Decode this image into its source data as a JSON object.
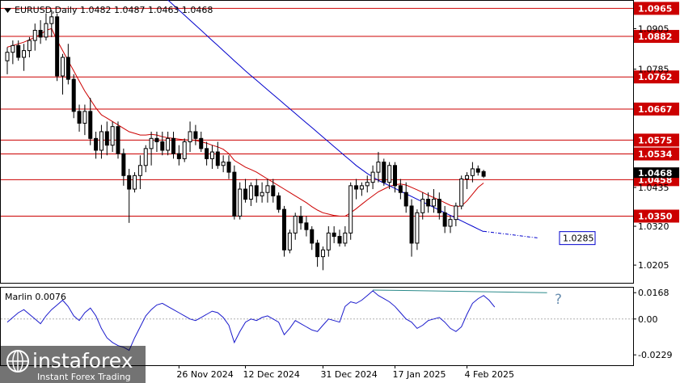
{
  "header": {
    "symbol_line": "EURUSD,Daily  1.0482 1.0487 1.0463 1.0468"
  },
  "indicator": {
    "label": "Marlin 0.0076",
    "question_mark": "?"
  },
  "watermark": {
    "brand": "instaforex",
    "tagline": "Instant Forex Trading"
  },
  "colors": {
    "level_line": "#cc0000",
    "level_label_bg": "#cc0000",
    "ma_fast": "#cc0000",
    "ma_slow": "#0000cc",
    "marlin_line": "#1a1acc",
    "divergence_line": "#2a8a8a",
    "candle_bull": "#ffffff",
    "candle_bear": "#000000",
    "projection_label_border": "#0000cc"
  },
  "chart_data": [
    {
      "type": "candlestick",
      "title": "EURUSD,Daily",
      "ohlc_header": {
        "open": 1.0482,
        "high": 1.0487,
        "low": 1.0463,
        "close": 1.0468
      },
      "ylim": [
        1.0155,
        1.0985
      ],
      "y_ticks": [
        1.0905,
        1.0785,
        1.0435,
        1.032,
        1.0205
      ],
      "y_tick_labels": [
        "1.0905",
        "1.0785",
        "1.0435",
        "1.0320",
        "1.0205"
      ],
      "x_tick_labels": [
        "26 Nov 2024",
        "12 Dec 2024",
        "31 Dec 2024",
        "17 Jan 2025",
        "4 Feb 2025"
      ],
      "x_tick_index": [
        31,
        43,
        57,
        70,
        83
      ],
      "levels": [
        {
          "value": 1.0965,
          "label": "1.0965"
        },
        {
          "value": 1.0882,
          "label": "1.0882"
        },
        {
          "value": 1.0762,
          "label": "1.0762"
        },
        {
          "value": 1.0667,
          "label": "1.0667"
        },
        {
          "value": 1.0575,
          "label": "1.0575"
        },
        {
          "value": 1.0534,
          "label": "1.0534"
        },
        {
          "value": 1.0458,
          "label": "1.0458"
        },
        {
          "value": 1.035,
          "label": "1.0350"
        }
      ],
      "current_price_label": "1.0468",
      "projection": {
        "value": 1.0285,
        "label": "1.0285"
      },
      "candles": [
        [
          1.081,
          1.085,
          1.077,
          1.0835
        ],
        [
          1.0835,
          1.087,
          1.08,
          1.0855
        ],
        [
          1.0855,
          1.087,
          1.081,
          1.082
        ],
        [
          1.082,
          1.086,
          1.078,
          1.084
        ],
        [
          1.084,
          1.088,
          1.082,
          1.087
        ],
        [
          1.087,
          1.092,
          1.084,
          1.09
        ],
        [
          1.09,
          1.093,
          1.086,
          1.088
        ],
        [
          1.088,
          1.095,
          1.087,
          1.092
        ],
        [
          1.092,
          1.096,
          1.088,
          1.094
        ],
        [
          1.094,
          1.095,
          1.075,
          1.0765
        ],
        [
          1.0765,
          1.083,
          1.071,
          1.082
        ],
        [
          1.082,
          1.086,
          1.074,
          1.0755
        ],
        [
          1.0755,
          1.077,
          1.064,
          1.066
        ],
        [
          1.066,
          1.068,
          1.06,
          1.0625
        ],
        [
          1.0625,
          1.068,
          1.059,
          1.066
        ],
        [
          1.066,
          1.07,
          1.056,
          1.058
        ],
        [
          1.058,
          1.06,
          1.052,
          1.0545
        ],
        [
          1.0545,
          1.062,
          1.052,
          1.06
        ],
        [
          1.06,
          1.063,
          1.053,
          1.056
        ],
        [
          1.056,
          1.063,
          1.054,
          1.0615
        ],
        [
          1.0615,
          1.063,
          1.052,
          1.0535
        ],
        [
          1.0535,
          1.055,
          1.044,
          1.047
        ],
        [
          1.047,
          1.049,
          1.033,
          1.043
        ],
        [
          1.043,
          1.048,
          1.042,
          1.047
        ],
        [
          1.047,
          1.053,
          1.043,
          1.05
        ],
        [
          1.05,
          1.056,
          1.048,
          1.055
        ],
        [
          1.055,
          1.06,
          1.05,
          1.058
        ],
        [
          1.058,
          1.06,
          1.054,
          1.057
        ],
        [
          1.057,
          1.06,
          1.053,
          1.0545
        ],
        [
          1.0545,
          1.06,
          1.053,
          1.058
        ],
        [
          1.058,
          1.06,
          1.052,
          1.0535
        ],
        [
          1.0535,
          1.056,
          1.05,
          1.052
        ],
        [
          1.052,
          1.058,
          1.051,
          1.057
        ],
        [
          1.057,
          1.063,
          1.054,
          1.06
        ],
        [
          1.06,
          1.062,
          1.056,
          1.058
        ],
        [
          1.058,
          1.06,
          1.054,
          1.055
        ],
        [
          1.055,
          1.057,
          1.05,
          1.052
        ],
        [
          1.052,
          1.056,
          1.049,
          1.054
        ],
        [
          1.054,
          1.057,
          1.049,
          1.05
        ],
        [
          1.05,
          1.053,
          1.048,
          1.051
        ],
        [
          1.051,
          1.053,
          1.046,
          1.048
        ],
        [
          1.048,
          1.05,
          1.034,
          1.035
        ],
        [
          1.035,
          1.045,
          1.034,
          1.043
        ],
        [
          1.043,
          1.046,
          1.039,
          1.04
        ],
        [
          1.04,
          1.045,
          1.038,
          1.044
        ],
        [
          1.044,
          1.046,
          1.039,
          1.041
        ],
        [
          1.041,
          1.045,
          1.039,
          1.042
        ],
        [
          1.042,
          1.046,
          1.039,
          1.044
        ],
        [
          1.044,
          1.046,
          1.039,
          1.041
        ],
        [
          1.041,
          1.042,
          1.036,
          1.037
        ],
        [
          1.037,
          1.038,
          1.023,
          1.025
        ],
        [
          1.025,
          1.031,
          1.024,
          1.03
        ],
        [
          1.03,
          1.036,
          1.028,
          1.035
        ],
        [
          1.035,
          1.038,
          1.031,
          1.033
        ],
        [
          1.033,
          1.035,
          1.029,
          1.031
        ],
        [
          1.031,
          1.032,
          1.025,
          1.027
        ],
        [
          1.027,
          1.028,
          1.02,
          1.023
        ],
        [
          1.023,
          1.026,
          1.019,
          1.025
        ],
        [
          1.025,
          1.032,
          1.023,
          1.03
        ],
        [
          1.03,
          1.032,
          1.027,
          1.029
        ],
        [
          1.029,
          1.031,
          1.026,
          1.027
        ],
        [
          1.027,
          1.032,
          1.026,
          1.03
        ],
        [
          1.03,
          1.045,
          1.028,
          1.044
        ],
        [
          1.044,
          1.046,
          1.04,
          1.043
        ],
        [
          1.043,
          1.045,
          1.041,
          1.044
        ],
        [
          1.044,
          1.047,
          1.042,
          1.045
        ],
        [
          1.045,
          1.05,
          1.043,
          1.048
        ],
        [
          1.048,
          1.054,
          1.045,
          1.051
        ],
        [
          1.051,
          1.052,
          1.044,
          1.045
        ],
        [
          1.045,
          1.051,
          1.043,
          1.05
        ],
        [
          1.05,
          1.051,
          1.042,
          1.044
        ],
        [
          1.044,
          1.046,
          1.04,
          1.042
        ],
        [
          1.042,
          1.045,
          1.036,
          1.038
        ],
        [
          1.038,
          1.04,
          1.023,
          1.027
        ],
        [
          1.027,
          1.037,
          1.025,
          1.036
        ],
        [
          1.036,
          1.042,
          1.034,
          1.04
        ],
        [
          1.04,
          1.042,
          1.036,
          1.038
        ],
        [
          1.038,
          1.043,
          1.036,
          1.04
        ],
        [
          1.04,
          1.042,
          1.034,
          1.036
        ],
        [
          1.036,
          1.038,
          1.03,
          1.032
        ],
        [
          1.032,
          1.035,
          1.03,
          1.034
        ],
        [
          1.034,
          1.039,
          1.032,
          1.038
        ],
        [
          1.038,
          1.047,
          1.037,
          1.046
        ],
        [
          1.046,
          1.048,
          1.043,
          1.047
        ],
        [
          1.047,
          1.051,
          1.045,
          1.049
        ],
        [
          1.049,
          1.05,
          1.047,
          1.048
        ],
        [
          1.0482,
          1.0487,
          1.0463,
          1.0468
        ]
      ],
      "ma_fast": [
        1.085,
        1.0855,
        1.086,
        1.0865,
        1.0872,
        1.088,
        1.0888,
        1.09,
        1.0905,
        1.087,
        1.084,
        1.081,
        1.078,
        1.075,
        1.072,
        1.0695,
        1.067,
        1.065,
        1.064,
        1.063,
        1.062,
        1.061,
        1.06,
        1.0595,
        1.059,
        1.059,
        1.0592,
        1.059,
        1.0585,
        1.0582,
        1.058,
        1.0578,
        1.0576,
        1.0575,
        1.0574,
        1.057,
        1.0566,
        1.056,
        1.0555,
        1.0548,
        1.0535,
        1.0515,
        1.0505,
        1.0495,
        1.0488,
        1.048,
        1.047,
        1.046,
        1.045,
        1.044,
        1.043,
        1.042,
        1.041,
        1.04,
        1.039,
        1.0378,
        1.0368,
        1.036,
        1.0356,
        1.0352,
        1.035,
        1.035,
        1.036,
        1.0372,
        1.0385,
        1.0398,
        1.041,
        1.0422,
        1.043,
        1.0438,
        1.0443,
        1.0445,
        1.0442,
        1.0435,
        1.0428,
        1.042,
        1.0412,
        1.0405,
        1.0398,
        1.039,
        1.0382,
        1.0378,
        1.038,
        1.0395,
        1.0415,
        1.0435,
        1.0448
      ],
      "ma_slow": [
        1.108,
        1.1065,
        1.105,
        1.1035,
        1.102,
        1.1005,
        1.099,
        1.0975,
        1.096,
        1.0945,
        1.093,
        1.0915,
        1.09,
        1.0885,
        1.087,
        1.0855,
        1.084,
        1.0825,
        1.081,
        1.0795,
        1.078,
        1.0766,
        1.0752,
        1.0738,
        1.0724,
        1.071,
        1.0696,
        1.0682,
        1.0668,
        1.0654,
        1.064,
        1.0626,
        1.0612,
        1.0598,
        1.0584,
        1.057,
        1.0556,
        1.0542,
        1.0528,
        1.0514,
        1.05,
        1.0488,
        1.0476,
        1.0466,
        1.0456,
        1.0448,
        1.044,
        1.0432,
        1.0424,
        1.0416,
        1.0408,
        1.04,
        1.0392,
        1.0384,
        1.0376,
        1.0368,
        1.036,
        1.0352,
        1.0344,
        1.0336,
        1.0328,
        1.032,
        1.0312,
        1.0304
      ],
      "ma_slow_start_index": 23,
      "projection_line": {
        "from_index": 86,
        "from_value": 1.0305,
        "to_index": 96,
        "to_value": 1.0285
      }
    },
    {
      "type": "line",
      "title": "Marlin",
      "value_label": "0.0076",
      "ylim": [
        -0.029,
        0.0195
      ],
      "y_ticks": [
        0.0168,
        0.0,
        -0.0229
      ],
      "y_tick_labels": [
        "0.0168",
        "0.00",
        "-0.0229"
      ],
      "series": [
        {
          "values": [
            -0.002,
            0.001,
            0.004,
            0.006,
            0.003,
            0.0,
            -0.003,
            0.002,
            0.006,
            0.009,
            0.012,
            0.008,
            0.002,
            -0.001,
            0.004,
            0.007,
            0.002,
            -0.006,
            -0.012,
            -0.015,
            -0.017,
            -0.018,
            -0.02,
            -0.012,
            -0.005,
            0.002,
            0.006,
            0.009,
            0.01,
            0.008,
            0.006,
            0.004,
            0.002,
            0.0,
            -0.001,
            0.001,
            0.003,
            0.005,
            0.004,
            0.001,
            -0.004,
            -0.015,
            -0.008,
            -0.002,
            0.0,
            -0.001,
            0.001,
            0.002,
            0.0,
            -0.002,
            -0.01,
            -0.006,
            -0.001,
            -0.003,
            -0.005,
            -0.007,
            -0.008,
            -0.004,
            0.0,
            -0.001,
            -0.002,
            0.008,
            0.011,
            0.01,
            0.012,
            0.015,
            0.018,
            0.015,
            0.013,
            0.011,
            0.008,
            0.004,
            0.0,
            -0.002,
            -0.006,
            -0.004,
            -0.001,
            0.0,
            0.001,
            -0.002,
            -0.006,
            -0.008,
            -0.005,
            0.003,
            0.01,
            0.013,
            0.015,
            0.012,
            0.0076
          ]
        }
      ],
      "divergence": {
        "from_index": 66,
        "from_value": 0.0185,
        "to_index": 96,
        "to_value": 0.0168
      }
    }
  ]
}
